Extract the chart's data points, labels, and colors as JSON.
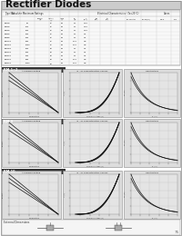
{
  "title": "Rectifier Diodes",
  "bg_color": "#ffffff",
  "title_bg": "#cccccc",
  "page_number": "75",
  "section_bars": [
    {
      "label": "RM 1~2",
      "color": "#444444"
    },
    {
      "label": "RM 4",
      "color": "#444444"
    },
    {
      "label": "RM 10",
      "color": "#444444"
    }
  ],
  "graph_titles_row": [
    "Allowable Rating",
    "IF - Vf Characteristics Curves",
    "Heat Rating"
  ],
  "graph_bg": "#e8e8e8",
  "graph_inner_bg": "#f0f0f0",
  "grid_color": "#cccccc",
  "curve_color": "#222222",
  "table_bg": "#f8f8f8"
}
